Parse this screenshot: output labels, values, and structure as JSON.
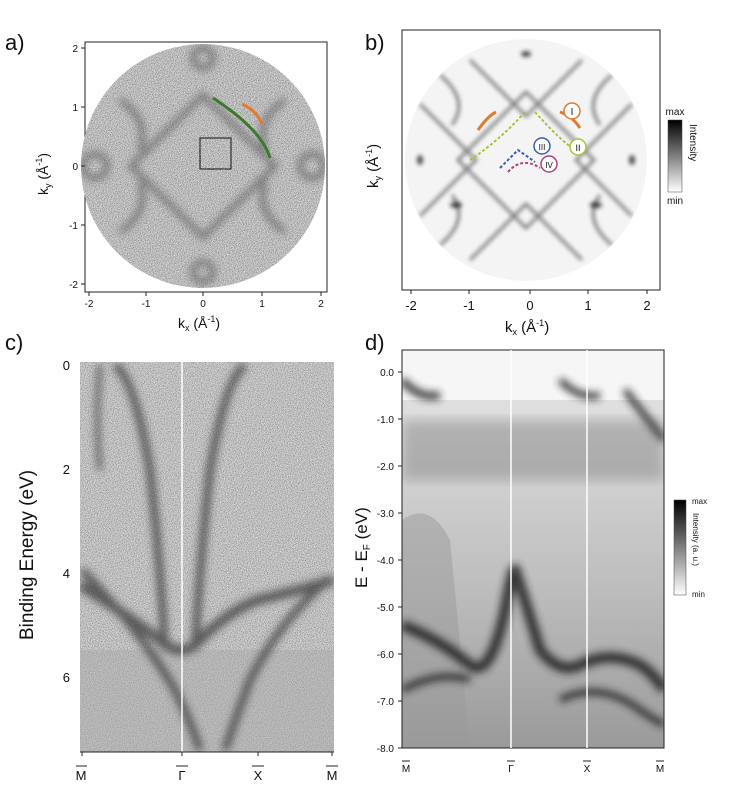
{
  "panels": {
    "a": {
      "label": "a)",
      "xlabel": "k",
      "xlabel_sub": "x",
      "xlabel_unit": " (Å",
      "xlabel_exp": "-1",
      "xlabel_close": ")",
      "ylabel": "k",
      "ylabel_sub": "y",
      "ylabel_unit": " (Å",
      "ylabel_exp": "-1",
      "ylabel_close": ")",
      "xticks": [
        "-2",
        "-1",
        "0",
        "1",
        "2"
      ],
      "yticks": [
        "2",
        "1",
        "0",
        "-1",
        "-2"
      ]
    },
    "b": {
      "label": "b)",
      "xlabel": "k",
      "xlabel_sub": "x",
      "xlabel_unit": " (Å",
      "xlabel_exp": "-1",
      "xlabel_close": ")",
      "ylabel": "k",
      "ylabel_sub": "y",
      "ylabel_unit": " (Å",
      "ylabel_exp": "-1",
      "ylabel_close": ")",
      "xticks": [
        "-2",
        "-1",
        "0",
        "1",
        "2"
      ],
      "markers": [
        "I",
        "II",
        "III",
        "IV"
      ],
      "colorbar_max": "max",
      "colorbar_min": "min",
      "colorbar_label": "Intensity"
    },
    "c": {
      "label": "c)",
      "ylabel": "Binding Energy (eV)",
      "yticks": [
        "0",
        "2",
        "4",
        "6"
      ],
      "xticks": [
        "M",
        "Γ",
        "X",
        "M"
      ]
    },
    "d": {
      "label": "d)",
      "ylabel": "E - E",
      "ylabel_sub": "F",
      "ylabel_unit": " (eV)",
      "yticks": [
        "0.0",
        "-1.0",
        "-2.0",
        "-3.0",
        "-4.0",
        "-5.0",
        "-6.0",
        "-7.0",
        "-8.0"
      ],
      "xticks": [
        "M",
        "Γ",
        "X",
        "M"
      ],
      "colorbar_max": "max",
      "colorbar_min": "min",
      "colorbar_label": "Intensity (a. u.)"
    }
  },
  "colors": {
    "green_curve": "#3b7a2a",
    "orange_curve": "#e07a2c",
    "lime_dashed": "#a8c43a",
    "blue_dashed": "#3a5fb0",
    "magenta_dashed": "#b04080"
  }
}
